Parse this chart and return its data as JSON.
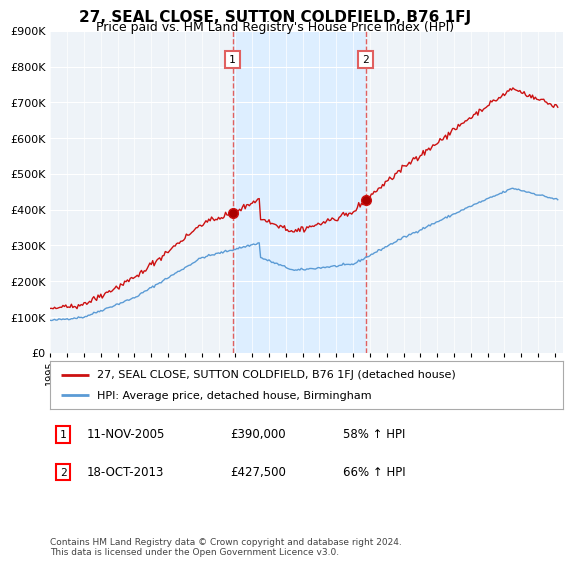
{
  "title": "27, SEAL CLOSE, SUTTON COLDFIELD, B76 1FJ",
  "subtitle": "Price paid vs. HM Land Registry's House Price Index (HPI)",
  "sale1_year": 2005,
  "sale1_month": 11,
  "sale1_price": 390000,
  "sale2_year": 2013,
  "sale2_month": 10,
  "sale2_price": 427500,
  "legend_property": "27, SEAL CLOSE, SUTTON COLDFIELD, B76 1FJ (detached house)",
  "legend_hpi": "HPI: Average price, detached house, Birmingham",
  "footer": "Contains HM Land Registry data © Crown copyright and database right 2024.\nThis data is licensed under the Open Government Licence v3.0.",
  "hpi_color": "#5b9bd5",
  "property_color": "#cc1111",
  "dashed_line_color": "#e06060",
  "shade_color": "#ddeeff",
  "plot_bg_color": "#f0f4f8",
  "ylim": [
    0,
    900000
  ],
  "yticks": [
    0,
    100000,
    200000,
    300000,
    400000,
    500000,
    600000,
    700000,
    800000,
    900000
  ],
  "start_year": 1995,
  "end_year": 2025,
  "note1": "11-NOV-2005",
  "note1_price": "£390,000",
  "note1_hpi": "58% ↑ HPI",
  "note2": "18-OCT-2013",
  "note2_price": "£427,500",
  "note2_hpi": "66% ↑ HPI"
}
